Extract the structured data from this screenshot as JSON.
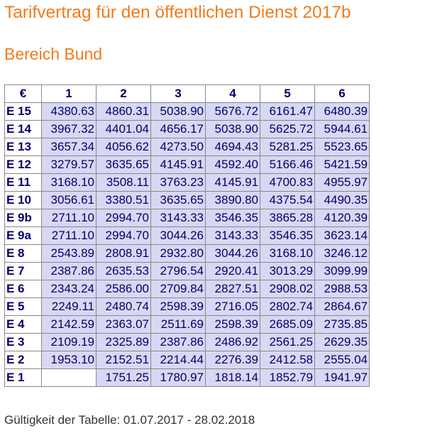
{
  "header": {
    "title": "Tarifvertrag für den öffentlichen Dienst 2017b",
    "subtitle": "Bereich Bund"
  },
  "table": {
    "columns": [
      "€",
      "1",
      "2",
      "3",
      "4",
      "5",
      "6"
    ],
    "rows": [
      [
        "E 15",
        "4380.63",
        "4860.31",
        "5038.90",
        "5676.72",
        "6161.47",
        "6480.39"
      ],
      [
        "E 14",
        "3967.32",
        "4401.04",
        "4656.17",
        "5038.90",
        "5625.72",
        "5944.61"
      ],
      [
        "E 13",
        "3657.34",
        "4056.62",
        "4273.50",
        "4694.43",
        "5281.25",
        "5523.65"
      ],
      [
        "E 12",
        "3279.57",
        "3635.65",
        "4145.91",
        "4592.40",
        "5166.46",
        "5421.59"
      ],
      [
        "E 11",
        "3168.10",
        "3508.11",
        "3763.23",
        "4145.91",
        "4700.83",
        "4955.97"
      ],
      [
        "E 10",
        "3056.61",
        "3380.51",
        "3635.65",
        "3890.80",
        "4375.54",
        "4490.35"
      ],
      [
        "E 9b",
        "2711.10",
        "2994.70",
        "3143.33",
        "3546.35",
        "3865.28",
        "4120.39"
      ],
      [
        "E 9a",
        "2711.10",
        "2994.70",
        "3044.26",
        "3143.33",
        "3546.35",
        "3623.14"
      ],
      [
        "E 8",
        "2543.89",
        "2808.91",
        "2932.80",
        "3044.26",
        "3168.10",
        "3246.12"
      ],
      [
        "E 7",
        "2387.86",
        "2635.53",
        "2796.54",
        "2920.41",
        "3013.29",
        "3099.99"
      ],
      [
        "E 6",
        "2343.24",
        "2586.00",
        "2709.84",
        "2827.51",
        "2908.02",
        "2988.53"
      ],
      [
        "E 5",
        "2249.11",
        "2480.74",
        "2598.39",
        "2716.05",
        "2802.74",
        "2864.67"
      ],
      [
        "E 4",
        "2142.59",
        "2363.07",
        "2511.69",
        "2598.39",
        "2685.09",
        "2735.85"
      ],
      [
        "E 3",
        "2109.19",
        "2325.89",
        "2387.86",
        "2486.92",
        "2561.25",
        "2629.35"
      ],
      [
        "E 2",
        "1953.10",
        "2152.51",
        "2214.44",
        "2276.39",
        "2412.58",
        "2555.04"
      ],
      [
        "E 1",
        null,
        "1751.25",
        "1780.97",
        "1818.14",
        "1852.79",
        "1941.97"
      ]
    ]
  },
  "footer": {
    "text": "Gültigkeit der Tabelle: 01.07.2017 - 28.02.2018"
  }
}
